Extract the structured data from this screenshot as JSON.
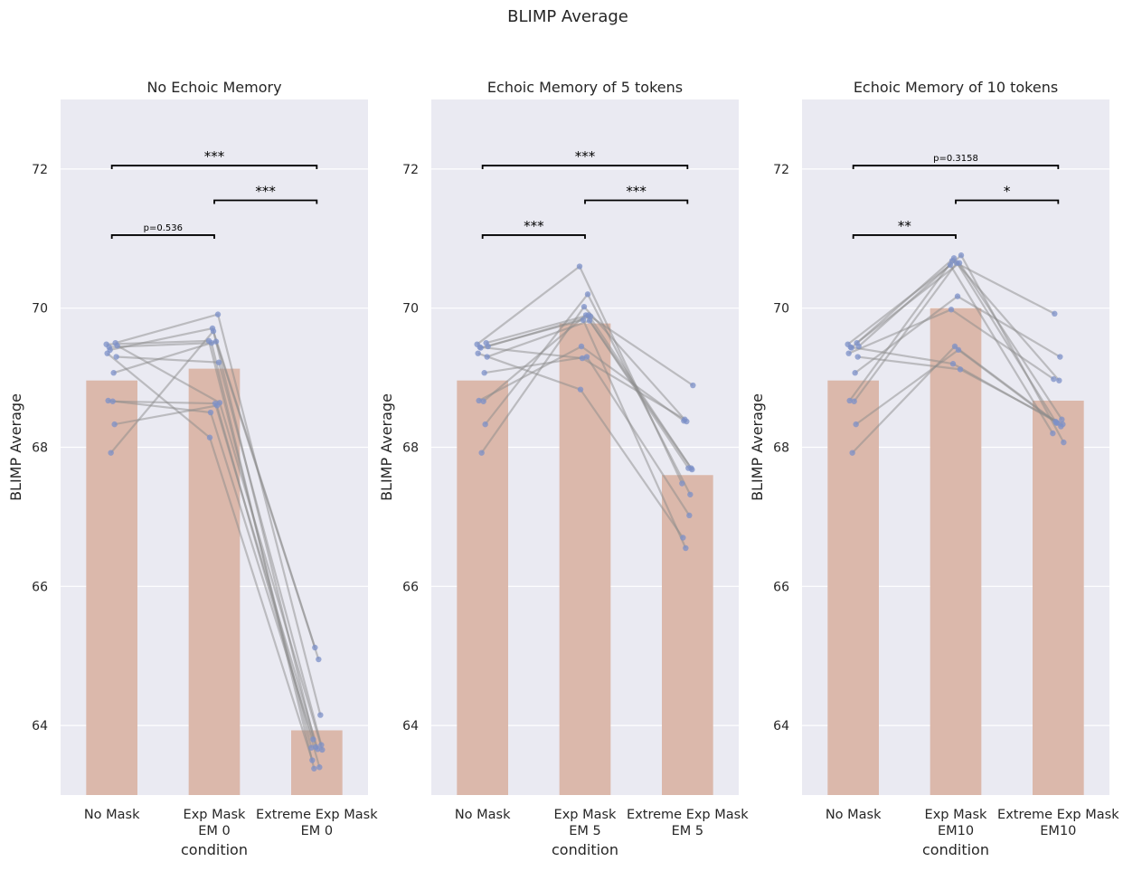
{
  "figure_title": "BLIMP Average",
  "chart_data": [
    {
      "type": "bar",
      "title": "No Echoic Memory",
      "xlabel": "condition",
      "ylabel": "BLIMP Average",
      "ylim": [
        63.0,
        73.0
      ],
      "yticks": [
        64,
        66,
        68,
        70,
        72
      ],
      "categories": [
        "No Mask",
        "Exp Mask\nEM 0",
        "Extreme Exp Mask\nEM 0"
      ],
      "values": [
        68.96,
        69.13,
        63.93
      ],
      "points": [
        [
          69.48,
          69.5,
          69.4,
          69.46,
          68.67,
          69.07,
          69.35,
          68.33,
          67.92,
          69.3,
          69.44,
          68.66
        ],
        [
          69.53,
          69.91,
          69.71,
          68.64,
          68.5,
          69.52,
          68.14,
          68.6,
          69.67,
          69.22,
          69.5,
          68.63
        ],
        [
          63.68,
          64.15,
          65.12,
          63.65,
          63.8,
          64.95,
          63.5,
          63.4,
          63.69,
          63.72,
          63.38,
          63.66
        ]
      ],
      "annotations": [
        {
          "from": 0,
          "to": 1,
          "level": 71.05,
          "label": "p=0.536",
          "small": true
        },
        {
          "from": 0,
          "to": 2,
          "level": 72.05,
          "label": "***",
          "small": false
        },
        {
          "from": 1,
          "to": 2,
          "level": 71.55,
          "label": "***",
          "small": false
        }
      ]
    },
    {
      "type": "bar",
      "title": "Echoic Memory of 5 tokens",
      "xlabel": "condition",
      "ylabel": "BLIMP Average",
      "ylim": [
        63.0,
        73.0
      ],
      "yticks": [
        64,
        66,
        68,
        70,
        72
      ],
      "categories": [
        "No Mask",
        "Exp Mask\nEM 5",
        "Extreme Exp Mask\nEM 5"
      ],
      "values": [
        68.96,
        69.78,
        67.6
      ],
      "points": [
        [
          69.48,
          69.5,
          69.43,
          69.45,
          68.67,
          69.07,
          69.35,
          68.33,
          67.92,
          69.3,
          69.44,
          68.66
        ],
        [
          70.6,
          69.9,
          69.83,
          69.88,
          69.45,
          69.3,
          68.83,
          70.2,
          70.02,
          69.82,
          69.28,
          69.9
        ],
        [
          67.48,
          67.7,
          66.55,
          68.89,
          68.38,
          67.02,
          66.7,
          67.32,
          68.37,
          67.68,
          68.4,
          67.7
        ]
      ],
      "annotations": [
        {
          "from": 0,
          "to": 1,
          "level": 71.05,
          "label": "***",
          "small": false
        },
        {
          "from": 0,
          "to": 2,
          "level": 72.05,
          "label": "***",
          "small": false
        },
        {
          "from": 1,
          "to": 2,
          "level": 71.55,
          "label": "***",
          "small": false
        }
      ]
    },
    {
      "type": "bar",
      "title": "Echoic Memory of 10 tokens",
      "xlabel": "condition",
      "ylabel": "BLIMP Average",
      "ylim": [
        63.0,
        73.0
      ],
      "yticks": [
        64,
        66,
        68,
        70,
        72
      ],
      "categories": [
        "No Mask",
        "Exp Mask\nEM10",
        "Extreme Exp Mask\nEM10"
      ],
      "values": [
        68.96,
        70.0,
        68.67
      ],
      "points": [
        [
          69.48,
          69.5,
          69.43,
          69.45,
          68.67,
          69.07,
          69.35,
          68.33,
          67.92,
          69.3,
          69.44,
          68.66
        ],
        [
          70.62,
          70.65,
          70.72,
          70.76,
          70.68,
          70.17,
          69.98,
          69.4,
          69.45,
          69.12,
          69.2,
          70.65
        ],
        [
          68.2,
          68.4,
          68.35,
          68.07,
          69.92,
          69.3,
          68.98,
          68.3,
          68.35,
          68.33,
          68.37,
          68.96
        ]
      ],
      "annotations": [
        {
          "from": 0,
          "to": 1,
          "level": 71.05,
          "label": "**",
          "small": false
        },
        {
          "from": 0,
          "to": 2,
          "level": 72.05,
          "label": "p=0.3158",
          "small": true
        },
        {
          "from": 1,
          "to": 2,
          "level": 71.55,
          "label": "*",
          "small": false
        }
      ]
    }
  ],
  "colors": {
    "panel_background": "#eaeaf2",
    "grid": "#ffffff",
    "bar": "#dbb8ab",
    "point": "#7c90c8",
    "line": "#8c8c8c",
    "bracket": "#000000",
    "text": "#262626"
  }
}
